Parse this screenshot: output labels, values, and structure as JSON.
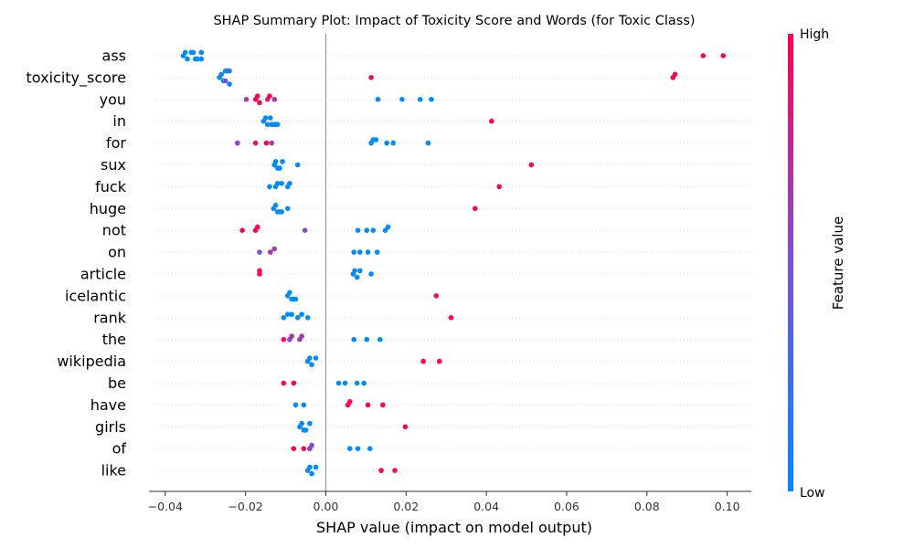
{
  "chart_data": {
    "type": "scatter",
    "title": "SHAP Summary Plot: Impact of Toxicity Score and Words (for Toxic Class)",
    "xlabel": "SHAP value (impact on model output)",
    "xlim": [
      -0.042,
      0.106
    ],
    "x_ticks": [
      -0.04,
      -0.02,
      0.0,
      0.02,
      0.04,
      0.06,
      0.08,
      0.1
    ],
    "x_tick_labels": [
      "−0.04",
      "−0.02",
      "0.00",
      "0.02",
      "0.04",
      "0.06",
      "0.08",
      "0.10"
    ],
    "colorbar": {
      "label": "Feature value",
      "high_label": "High",
      "low_label": "Low",
      "low_color": "#008bfb",
      "mid_color": "#7c51d6",
      "high_color": "#ff0052"
    },
    "features": [
      {
        "name": "ass",
        "points": [
          {
            "x": -0.0355,
            "v": 0
          },
          {
            "x": -0.035,
            "v": 0
          },
          {
            "x": -0.0345,
            "v": 0
          },
          {
            "x": -0.0335,
            "v": 0
          },
          {
            "x": -0.033,
            "v": 0
          },
          {
            "x": -0.0325,
            "v": 0
          },
          {
            "x": -0.032,
            "v": 0
          },
          {
            "x": -0.031,
            "v": 0
          },
          {
            "x": -0.031,
            "v": 0
          },
          {
            "x": 0.094,
            "v": 1
          },
          {
            "x": 0.099,
            "v": 1
          }
        ]
      },
      {
        "name": "toxicity_score",
        "points": [
          {
            "x": -0.0265,
            "v": 0.05
          },
          {
            "x": -0.026,
            "v": 0.1
          },
          {
            "x": -0.0255,
            "v": 0.1
          },
          {
            "x": -0.025,
            "v": 0.45
          },
          {
            "x": -0.025,
            "v": 0.1
          },
          {
            "x": -0.0245,
            "v": 0.1
          },
          {
            "x": -0.024,
            "v": 0.05
          },
          {
            "x": -0.024,
            "v": 0.05
          },
          {
            "x": 0.0113,
            "v": 0.95
          },
          {
            "x": 0.0865,
            "v": 1
          },
          {
            "x": 0.087,
            "v": 1
          }
        ]
      },
      {
        "name": "you",
        "points": [
          {
            "x": -0.0198,
            "v": 0.65
          },
          {
            "x": -0.0175,
            "v": 1
          },
          {
            "x": -0.017,
            "v": 1
          },
          {
            "x": -0.0165,
            "v": 0.95
          },
          {
            "x": -0.0145,
            "v": 0.8
          },
          {
            "x": -0.014,
            "v": 1
          },
          {
            "x": -0.0128,
            "v": 0.7
          },
          {
            "x": 0.013,
            "v": 0
          },
          {
            "x": 0.019,
            "v": 0
          },
          {
            "x": 0.0235,
            "v": 0
          },
          {
            "x": 0.0263,
            "v": 0
          }
        ]
      },
      {
        "name": "in",
        "points": [
          {
            "x": -0.0155,
            "v": 0
          },
          {
            "x": -0.015,
            "v": 0
          },
          {
            "x": -0.0145,
            "v": 0
          },
          {
            "x": -0.0138,
            "v": 0
          },
          {
            "x": -0.0135,
            "v": 0
          },
          {
            "x": -0.013,
            "v": 0
          },
          {
            "x": -0.0125,
            "v": 0
          },
          {
            "x": -0.012,
            "v": 0
          },
          {
            "x": 0.0413,
            "v": 1
          }
        ]
      },
      {
        "name": "for",
        "points": [
          {
            "x": -0.022,
            "v": 0.6
          },
          {
            "x": -0.0175,
            "v": 0.9
          },
          {
            "x": -0.0148,
            "v": 1
          },
          {
            "x": -0.0135,
            "v": 0.65
          },
          {
            "x": 0.0113,
            "v": 0
          },
          {
            "x": 0.0118,
            "v": 0
          },
          {
            "x": 0.0125,
            "v": 0
          },
          {
            "x": 0.0152,
            "v": 0
          },
          {
            "x": 0.0168,
            "v": 0
          },
          {
            "x": 0.0255,
            "v": 0
          }
        ]
      },
      {
        "name": "sux",
        "points": [
          {
            "x": -0.0128,
            "v": 0
          },
          {
            "x": -0.0125,
            "v": 0
          },
          {
            "x": -0.012,
            "v": 0
          },
          {
            "x": -0.0115,
            "v": 0
          },
          {
            "x": -0.0108,
            "v": 0
          },
          {
            "x": -0.007,
            "v": 0
          },
          {
            "x": 0.0512,
            "v": 1
          }
        ]
      },
      {
        "name": "fuck",
        "points": [
          {
            "x": -0.014,
            "v": 0
          },
          {
            "x": -0.0125,
            "v": 0
          },
          {
            "x": -0.012,
            "v": 0
          },
          {
            "x": -0.011,
            "v": 0
          },
          {
            "x": -0.0095,
            "v": 0
          },
          {
            "x": -0.009,
            "v": 0
          },
          {
            "x": 0.0432,
            "v": 1
          }
        ]
      },
      {
        "name": "huge",
        "points": [
          {
            "x": -0.013,
            "v": 0
          },
          {
            "x": -0.0125,
            "v": 0
          },
          {
            "x": -0.012,
            "v": 0
          },
          {
            "x": -0.0115,
            "v": 0
          },
          {
            "x": -0.011,
            "v": 0
          },
          {
            "x": -0.0095,
            "v": 0
          },
          {
            "x": 0.0372,
            "v": 1
          }
        ]
      },
      {
        "name": "not",
        "points": [
          {
            "x": -0.0208,
            "v": 1
          },
          {
            "x": -0.0175,
            "v": 1
          },
          {
            "x": -0.017,
            "v": 1
          },
          {
            "x": -0.0052,
            "v": 0.55
          },
          {
            "x": 0.008,
            "v": 0
          },
          {
            "x": 0.0102,
            "v": 0
          },
          {
            "x": 0.0118,
            "v": 0
          },
          {
            "x": 0.0148,
            "v": 0
          },
          {
            "x": 0.0155,
            "v": 0
          }
        ]
      },
      {
        "name": "on",
        "points": [
          {
            "x": -0.0165,
            "v": 0.5
          },
          {
            "x": -0.0138,
            "v": 0.7
          },
          {
            "x": -0.0128,
            "v": 0.6
          },
          {
            "x": 0.007,
            "v": 0
          },
          {
            "x": 0.0085,
            "v": 0
          },
          {
            "x": 0.0105,
            "v": 0
          },
          {
            "x": 0.0128,
            "v": 0
          }
        ]
      },
      {
        "name": "article",
        "points": [
          {
            "x": -0.0165,
            "v": 1
          },
          {
            "x": -0.0165,
            "v": 1
          },
          {
            "x": 0.0068,
            "v": 0
          },
          {
            "x": 0.0072,
            "v": 0
          },
          {
            "x": 0.0078,
            "v": 0
          },
          {
            "x": 0.0085,
            "v": 0
          },
          {
            "x": 0.0113,
            "v": 0
          }
        ]
      },
      {
        "name": "icelantic",
        "points": [
          {
            "x": -0.0095,
            "v": 0
          },
          {
            "x": -0.009,
            "v": 0
          },
          {
            "x": -0.0085,
            "v": 0
          },
          {
            "x": -0.008,
            "v": 0
          },
          {
            "x": -0.0075,
            "v": 0
          },
          {
            "x": 0.0275,
            "v": 1
          }
        ]
      },
      {
        "name": "rank",
        "points": [
          {
            "x": -0.0105,
            "v": 0
          },
          {
            "x": -0.0095,
            "v": 0
          },
          {
            "x": -0.0085,
            "v": 0
          },
          {
            "x": -0.007,
            "v": 0
          },
          {
            "x": -0.006,
            "v": 0
          },
          {
            "x": -0.0045,
            "v": 0
          },
          {
            "x": 0.0312,
            "v": 1
          }
        ]
      },
      {
        "name": "the",
        "points": [
          {
            "x": -0.0105,
            "v": 1
          },
          {
            "x": -0.009,
            "v": 0.5
          },
          {
            "x": -0.0085,
            "v": 0.75
          },
          {
            "x": -0.0065,
            "v": 0.6
          },
          {
            "x": -0.006,
            "v": 0.65
          },
          {
            "x": 0.007,
            "v": 0
          },
          {
            "x": 0.0102,
            "v": 0
          },
          {
            "x": 0.0135,
            "v": 0
          }
        ]
      },
      {
        "name": "wikipedia",
        "points": [
          {
            "x": -0.0045,
            "v": 0
          },
          {
            "x": -0.004,
            "v": 0
          },
          {
            "x": -0.0035,
            "v": 0
          },
          {
            "x": -0.0025,
            "v": 0
          },
          {
            "x": 0.0243,
            "v": 1
          },
          {
            "x": 0.0283,
            "v": 1
          }
        ]
      },
      {
        "name": "be",
        "points": [
          {
            "x": -0.0105,
            "v": 1
          },
          {
            "x": -0.008,
            "v": 1
          },
          {
            "x": 0.0032,
            "v": 0
          },
          {
            "x": 0.0048,
            "v": 0
          },
          {
            "x": 0.0078,
            "v": 0
          },
          {
            "x": 0.0095,
            "v": 0
          }
        ]
      },
      {
        "name": "have",
        "points": [
          {
            "x": -0.0075,
            "v": 0
          },
          {
            "x": -0.0055,
            "v": 0
          },
          {
            "x": 0.0055,
            "v": 1
          },
          {
            "x": 0.006,
            "v": 1
          },
          {
            "x": 0.0105,
            "v": 1
          },
          {
            "x": 0.0142,
            "v": 1
          }
        ]
      },
      {
        "name": "girls",
        "points": [
          {
            "x": -0.0065,
            "v": 0
          },
          {
            "x": -0.006,
            "v": 0
          },
          {
            "x": -0.0055,
            "v": 0
          },
          {
            "x": -0.005,
            "v": 0
          },
          {
            "x": -0.004,
            "v": 0
          },
          {
            "x": 0.0198,
            "v": 1
          }
        ]
      },
      {
        "name": "of",
        "points": [
          {
            "x": -0.008,
            "v": 1
          },
          {
            "x": -0.0055,
            "v": 1
          },
          {
            "x": -0.004,
            "v": 0.6
          },
          {
            "x": -0.0035,
            "v": 0.55
          },
          {
            "x": 0.006,
            "v": 0
          },
          {
            "x": 0.008,
            "v": 0
          },
          {
            "x": 0.011,
            "v": 0
          }
        ]
      },
      {
        "name": "like",
        "points": [
          {
            "x": -0.0045,
            "v": 0
          },
          {
            "x": -0.004,
            "v": 0
          },
          {
            "x": -0.0035,
            "v": 0
          },
          {
            "x": -0.0025,
            "v": 0
          },
          {
            "x": 0.0138,
            "v": 1
          },
          {
            "x": 0.0172,
            "v": 1
          }
        ]
      }
    ]
  }
}
